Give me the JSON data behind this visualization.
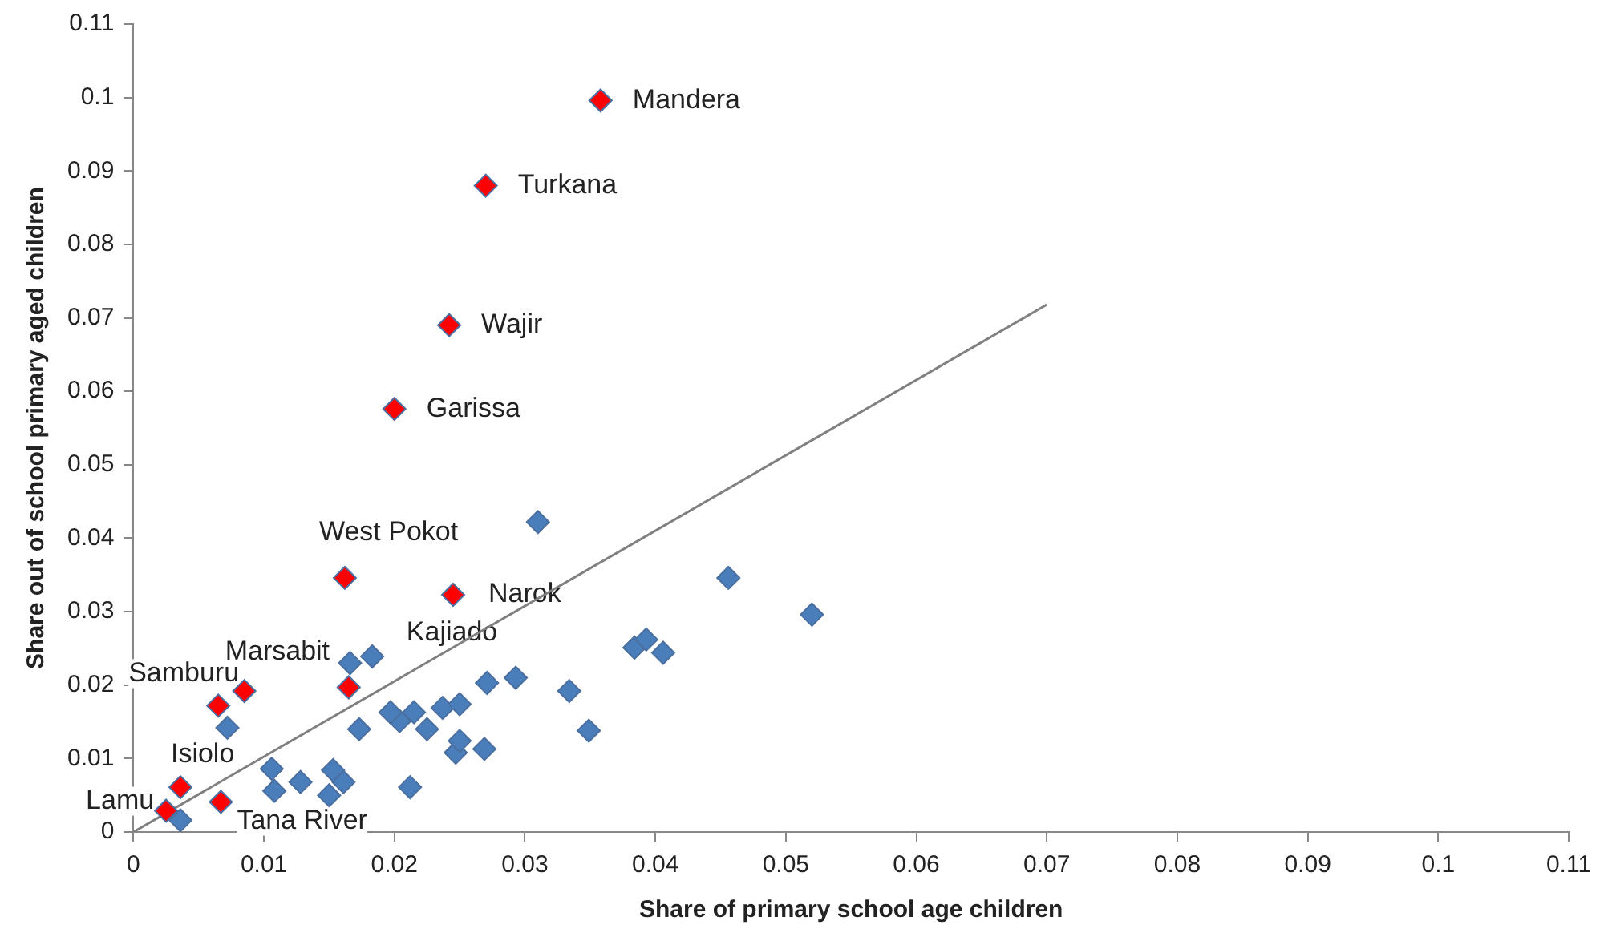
{
  "chart_data": {
    "type": "scatter",
    "xlabel": "Share of primary school age children",
    "ylabel": "Share out of school primary aged children",
    "marker": "diamond",
    "grid": false,
    "legend": false,
    "xlim": [
      0,
      0.11
    ],
    "xticks": [
      0,
      0.01,
      0.02,
      0.03,
      0.04,
      0.05,
      0.06,
      0.07,
      0.08,
      0.09,
      0.1,
      0.11
    ],
    "ylim": [
      0,
      0.11
    ],
    "yticks": [
      0,
      0.01,
      0.02,
      0.03,
      0.04,
      0.05,
      0.06,
      0.07,
      0.08,
      0.09,
      0.1,
      0.11
    ],
    "series": [
      {
        "color": "#4a7ebb",
        "x": [
          0.0036,
          0.0072,
          0.0106,
          0.0108,
          0.0128,
          0.0153,
          0.0161,
          0.015,
          0.0212,
          0.0166,
          0.0183,
          0.0173,
          0.0204,
          0.0215,
          0.0225,
          0.0237,
          0.025,
          0.0271,
          0.0247,
          0.025,
          0.0269,
          0.0293,
          0.0334,
          0.0349,
          0.031,
          0.0384,
          0.0393,
          0.0406,
          0.0456,
          0.052,
          0.0197
        ],
        "values": [
          0.0016,
          0.0142,
          0.0086,
          0.0056,
          0.0068,
          0.0084,
          0.0068,
          0.005,
          0.0061,
          0.023,
          0.0239,
          0.014,
          0.0151,
          0.0163,
          0.014,
          0.0169,
          0.0174,
          0.0203,
          0.0108,
          0.0124,
          0.0113,
          0.021,
          0.0192,
          0.0138,
          0.0422,
          0.0251,
          0.0262,
          0.0244,
          0.0346,
          0.0296,
          0.0163
        ]
      },
      {
        "color": "#ff0000",
        "x": [
          0.0358,
          0.027,
          0.0242,
          0.02,
          0.0162,
          0.0245,
          0.0065,
          0.0085,
          0.0165,
          0.0036,
          0.0025,
          0.0067
        ],
        "values": [
          0.0996,
          0.088,
          0.069,
          0.0576,
          0.0346,
          0.0323,
          0.0172,
          0.0192,
          0.0197,
          0.0061,
          0.0029,
          0.0041
        ]
      },
      {
        "type": "line",
        "color": "#808080",
        "marker": "none",
        "x": [
          0,
          0.07
        ],
        "values": [
          0,
          0.0718
        ]
      }
    ],
    "annotations": [
      {
        "text": "Mandera",
        "x": 0.0358,
        "y": 0.0996
      },
      {
        "text": "Turkana",
        "x": 0.027,
        "y": 0.088
      },
      {
        "text": "Wajir",
        "x": 0.0242,
        "y": 0.069
      },
      {
        "text": "Garissa",
        "x": 0.02,
        "y": 0.0576
      },
      {
        "text": "West Pokot",
        "x": 0.0162,
        "y": 0.0346
      },
      {
        "text": "Narok",
        "x": 0.0245,
        "y": 0.0323
      },
      {
        "text": "Samburu",
        "x": 0.0065,
        "y": 0.0172
      },
      {
        "text": "Marsabit",
        "x": 0.0085,
        "y": 0.0192
      },
      {
        "text": "Kajiado",
        "x": 0.0165,
        "y": 0.0197
      },
      {
        "text": "Isiolo",
        "x": 0.0036,
        "y": 0.0061
      },
      {
        "text": "Lamu",
        "x": 0.0025,
        "y": 0.0029
      },
      {
        "text": "Tana River",
        "x": 0.0067,
        "y": 0.0041
      }
    ]
  }
}
